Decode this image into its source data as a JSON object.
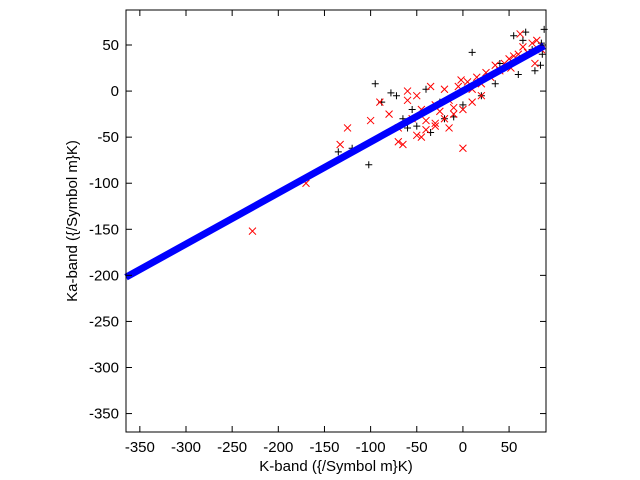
{
  "chart_data": {
    "type": "scatter",
    "title": "",
    "xlabel": "K-band ({/Symbol m}K)",
    "ylabel": "Ka-band ({/Symbol m}K)",
    "xlim": [
      -365,
      90
    ],
    "ylim": [
      -370,
      88
    ],
    "xticks": [
      -350,
      -300,
      -250,
      -200,
      -150,
      -100,
      -50,
      0,
      50
    ],
    "yticks": [
      50,
      0,
      -50,
      -100,
      -150,
      -200,
      -250,
      -300,
      -350
    ],
    "grid": false,
    "legend": "none",
    "colors": {
      "plus": "#000000",
      "cross": "#ff0000",
      "line": "#0000ff"
    },
    "series": [
      {
        "marker": "plus",
        "x": [
          -135,
          -120,
          -95,
          -78,
          -60,
          -55,
          -40,
          -25,
          -10,
          10,
          25,
          40,
          55,
          65,
          75,
          85,
          88,
          78,
          60,
          35,
          20,
          0,
          -20,
          -35,
          -50,
          -65,
          -88,
          -72,
          -102,
          68,
          84,
          86
        ],
        "y": [
          -66,
          -62,
          8,
          -2,
          -40,
          -20,
          2,
          -12,
          -28,
          42,
          15,
          30,
          60,
          55,
          45,
          52,
          67,
          22,
          18,
          8,
          -5,
          -15,
          -30,
          -45,
          -38,
          -30,
          -12,
          -5,
          -80,
          64,
          28,
          40
        ]
      },
      {
        "marker": "cross",
        "x": [
          -228,
          -170,
          -133,
          -125,
          -100,
          -90,
          -80,
          -70,
          -60,
          -55,
          -50,
          -45,
          -40,
          -35,
          -30,
          -25,
          -20,
          -15,
          -10,
          -5,
          0,
          5,
          10,
          15,
          20,
          25,
          30,
          35,
          40,
          45,
          50,
          55,
          60,
          65,
          70,
          75,
          80,
          85,
          -70,
          -65,
          -50,
          -40,
          -30,
          -20,
          -10,
          0,
          10,
          20,
          -2,
          -60,
          -30,
          62,
          78,
          52,
          -15,
          -45
        ],
        "y": [
          -152,
          -100,
          -58,
          -40,
          -32,
          -12,
          -25,
          -40,
          -10,
          -30,
          -5,
          -20,
          -32,
          5,
          -15,
          -22,
          2,
          -10,
          -18,
          5,
          -62,
          10,
          2,
          15,
          8,
          20,
          15,
          28,
          22,
          30,
          35,
          38,
          40,
          48,
          42,
          52,
          55,
          45,
          -55,
          -58,
          -48,
          -42,
          -38,
          -30,
          -25,
          -20,
          -12,
          -5,
          12,
          0,
          -35,
          62,
          30,
          25,
          -40,
          -50
        ]
      },
      {
        "marker": "line",
        "x": [
          -365,
          88
        ],
        "y": [
          -202,
          49
        ]
      }
    ]
  }
}
